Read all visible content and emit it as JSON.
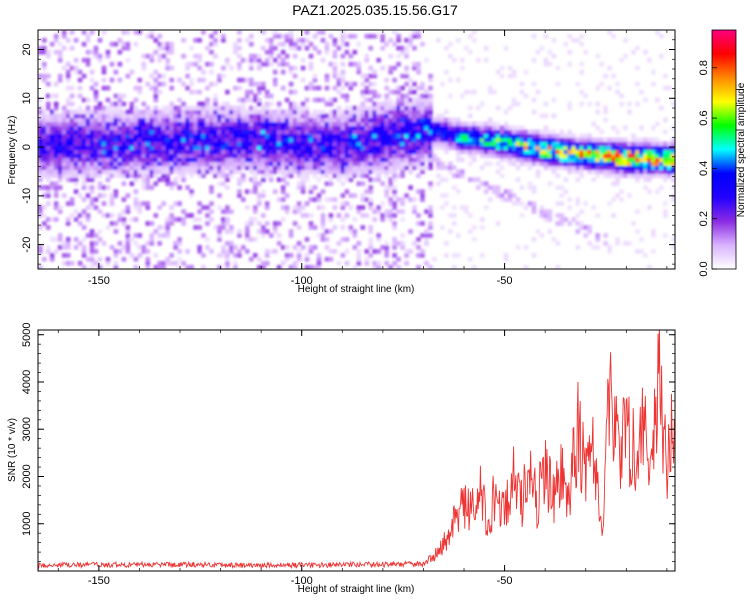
{
  "title": "PAZ1.2025.035.15.56.G17",
  "chart_data": [
    {
      "type": "heatmap",
      "xlabel": "Height of straight line (km)",
      "ylabel": "Frequency (Hz)",
      "xlim": [
        -165,
        -8
      ],
      "ylim": [
        -25,
        24
      ],
      "xticks": [
        -150,
        -100,
        -50
      ],
      "yticks": [
        -20,
        -10,
        0,
        10,
        20
      ],
      "colorbar": {
        "label": "Normalized spectral amplitude",
        "range": [
          0,
          0.95
        ],
        "ticks": [
          0.0,
          0.2,
          0.4,
          0.6,
          0.8
        ],
        "tick_labels": [
          "0.0",
          "0.2",
          "0.4",
          "0.6",
          "0.8"
        ],
        "colormap": [
          "#ffffff",
          "#d9b3ff",
          "#8a2be2",
          "#2200ff",
          "#0000ff",
          "#00ffff",
          "#00ff00",
          "#ffff00",
          "#ff8800",
          "#ff0000",
          "#ff0080"
        ]
      },
      "ridge": {
        "x": [
          -165,
          -140,
          -115,
          -90,
          -68,
          -60,
          -50,
          -40,
          -30,
          -20,
          -8
        ],
        "freq": [
          0.5,
          1.0,
          1.5,
          0.5,
          3.5,
          2.0,
          1.0,
          -0.5,
          -1.5,
          -2.2,
          -2.5
        ],
        "peak_amplitude": [
          0.3,
          0.3,
          0.3,
          0.3,
          0.35,
          0.5,
          0.6,
          0.7,
          0.75,
          0.9,
          0.8
        ]
      }
    },
    {
      "type": "line",
      "xlabel": "Height of straight line (km)",
      "ylabel": "SNR (10 * v/v)",
      "xlim": [
        -165,
        -8
      ],
      "ylim": [
        0,
        5100
      ],
      "xticks": [
        -150,
        -100,
        -50
      ],
      "yticks": [
        1000,
        2000,
        3000,
        4000,
        5000
      ],
      "color": "#ee3333",
      "series": [
        {
          "x": [
            -165,
            -150,
            -130,
            -110,
            -90,
            -70,
            -68,
            -66,
            -64,
            -62,
            -60,
            -58,
            -56,
            -54,
            -52,
            -50,
            -48,
            -46,
            -44,
            -42,
            -40,
            -38,
            -36,
            -34,
            -32,
            -30,
            -28,
            -26,
            -24,
            -22,
            -20,
            -18,
            -16,
            -14,
            -12,
            -10,
            -8
          ],
          "values": [
            120,
            130,
            140,
            120,
            130,
            150,
            300,
            500,
            800,
            1200,
            1600,
            1400,
            1800,
            1100,
            2000,
            1300,
            2200,
            1500,
            2600,
            1600,
            2400,
            1800,
            2200,
            1700,
            3400,
            2500,
            2800,
            900,
            4400,
            2600,
            3600,
            2700,
            4200,
            2300,
            5000,
            2000,
            4300
          ]
        }
      ]
    }
  ]
}
